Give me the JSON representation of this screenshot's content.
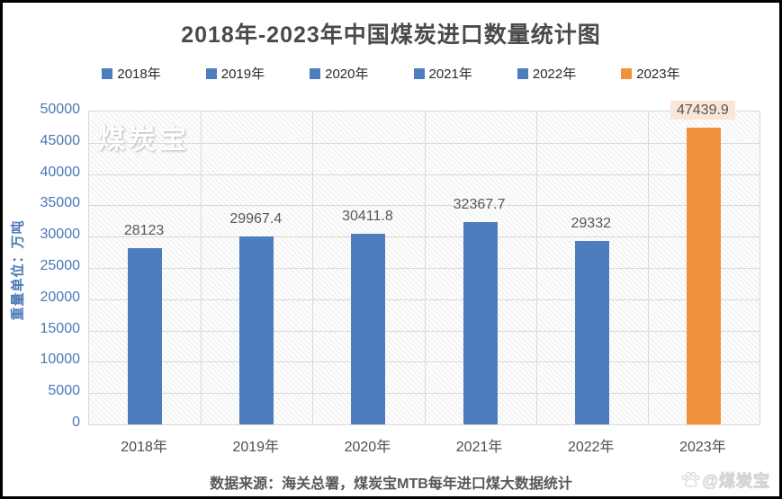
{
  "title": "2018年-2023年中国煤炭进口数量统计图",
  "legend": {
    "items": [
      {
        "label": "2018年",
        "color": "#4d7dbd"
      },
      {
        "label": "2019年",
        "color": "#4d7dbd"
      },
      {
        "label": "2020年",
        "color": "#4d7dbd"
      },
      {
        "label": "2021年",
        "color": "#4d7dbd"
      },
      {
        "label": "2022年",
        "color": "#4d7dbd"
      },
      {
        "label": "2023年",
        "color": "#f0923c"
      }
    ]
  },
  "chart_data": {
    "type": "bar",
    "title": "2018年-2023年中国煤炭进口数量统计图",
    "categories": [
      "2018年",
      "2019年",
      "2020年",
      "2021年",
      "2022年",
      "2023年"
    ],
    "values": [
      28123,
      29967.4,
      30411.8,
      32367.7,
      29332,
      47439.9
    ],
    "data_labels": [
      "28123",
      "29967.4",
      "30411.8",
      "32367.7",
      "29332",
      "47439.9"
    ],
    "bar_colors": [
      "#4d7dbd",
      "#4d7dbd",
      "#4d7dbd",
      "#4d7dbd",
      "#4d7dbd",
      "#f0923c"
    ],
    "highlighted_label_index": 5,
    "highlight_label_bg": "#fbe5d6",
    "xlabel": "",
    "ylabel": "重量单位：万吨",
    "ylim": [
      0,
      50000
    ],
    "ytick_step": 5000,
    "yticks": [
      0,
      5000,
      10000,
      15000,
      20000,
      25000,
      30000,
      35000,
      40000,
      45000,
      50000
    ],
    "grid": true,
    "legend_position": "top"
  },
  "watermarks": {
    "plot_topleft": "煤炭宝",
    "bottom_right": "@煤炭宝"
  },
  "footer": {
    "source_note": "数据来源：海关总署，煤炭宝MTB每年进口煤大数据统计"
  },
  "colors": {
    "bar_blue": "#4d7dbd",
    "bar_orange": "#f0923c",
    "axis_text_blue": "#4a78b6",
    "title_text": "#4a4a4a",
    "label_text": "#575757",
    "grid": "#d9d9d9",
    "highlight_bg": "#fbe5d6",
    "frame_border": "#000000"
  }
}
